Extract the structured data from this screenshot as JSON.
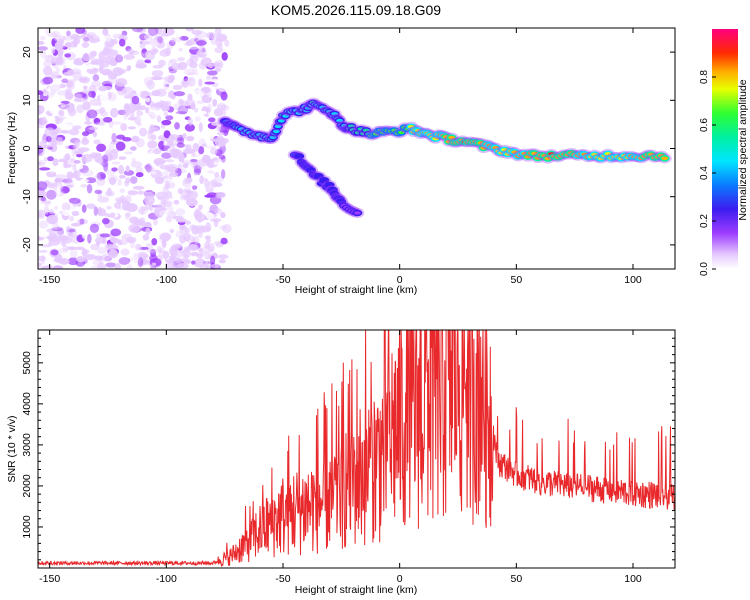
{
  "title": "KOM5.2026.115.09.18.G09",
  "colors": {
    "snr_line": "#e8282b",
    "speckle": "#7a1fe0",
    "frame": "#000000"
  },
  "chart_data": [
    {
      "type": "heatmap",
      "xlabel": "Height of straight line (km)",
      "ylabel": "Frequency (Hz)",
      "xlim": [
        -155,
        118
      ],
      "ylim": [
        -25,
        25
      ],
      "xticks": [
        -150,
        -100,
        -50,
        0,
        50,
        100
      ],
      "yticks": [
        -20,
        -10,
        0,
        10,
        20
      ],
      "colorbar": {
        "label": "Normalized spectral amplitude",
        "range": [
          0,
          1
        ],
        "ticks": [
          "0.0",
          "0.2",
          "0.4",
          "0.6",
          "0.8"
        ],
        "colormap": "rainbow (white-purple-blue-cyan-green-yellow-red-magenta)"
      },
      "noise_region_x": [
        -155,
        -78
      ],
      "signal_trace": [
        {
          "x": -75,
          "y": 6,
          "amp": 0.35
        },
        {
          "x": -70,
          "y": 4,
          "amp": 0.45
        },
        {
          "x": -62,
          "y": 3,
          "amp": 0.5
        },
        {
          "x": -55,
          "y": 2,
          "amp": 0.45
        },
        {
          "x": -50,
          "y": 7,
          "amp": 0.55
        },
        {
          "x": -42,
          "y": 8,
          "amp": 0.5
        },
        {
          "x": -37,
          "y": 9,
          "amp": 0.55
        },
        {
          "x": -30,
          "y": 8,
          "amp": 0.5
        },
        {
          "x": -25,
          "y": 5,
          "amp": 0.5
        },
        {
          "x": -20,
          "y": 4,
          "amp": 0.6
        },
        {
          "x": -12,
          "y": 3,
          "amp": 0.65
        },
        {
          "x": -5,
          "y": 3.5,
          "amp": 0.7
        },
        {
          "x": 5,
          "y": 4,
          "amp": 0.75
        },
        {
          "x": 12,
          "y": 3,
          "amp": 0.75
        },
        {
          "x": 20,
          "y": 2,
          "amp": 0.85
        },
        {
          "x": 28,
          "y": 1.5,
          "amp": 0.9
        },
        {
          "x": 36,
          "y": 0.5,
          "amp": 0.85
        },
        {
          "x": 45,
          "y": -0.5,
          "amp": 0.8
        },
        {
          "x": 55,
          "y": -1.5,
          "amp": 0.85
        },
        {
          "x": 65,
          "y": -1.5,
          "amp": 0.9
        },
        {
          "x": 75,
          "y": -1.5,
          "amp": 0.85
        },
        {
          "x": 85,
          "y": -1.5,
          "amp": 0.8
        },
        {
          "x": 95,
          "y": -1.5,
          "amp": 0.8
        },
        {
          "x": 105,
          "y": -1.5,
          "amp": 0.85
        },
        {
          "x": 115,
          "y": -1.5,
          "amp": 0.85
        }
      ],
      "secondary_trace": [
        {
          "x": -45,
          "y": -1,
          "amp": 0.35
        },
        {
          "x": -38,
          "y": -5,
          "amp": 0.3
        },
        {
          "x": -30,
          "y": -8,
          "amp": 0.25
        },
        {
          "x": -25,
          "y": -11,
          "amp": 0.25
        },
        {
          "x": -17,
          "y": -14,
          "amp": 0.2
        }
      ]
    },
    {
      "type": "line",
      "xlabel": "Height of straight line (km)",
      "ylabel": "SNR (10 * v/v)",
      "xlim": [
        -155,
        118
      ],
      "ylim": [
        0,
        5800
      ],
      "xticks": [
        -150,
        -100,
        -50,
        0,
        50,
        100
      ],
      "yticks": [
        1000,
        2000,
        3000,
        4000,
        5000
      ],
      "envelope": [
        {
          "x": -155,
          "y": 120
        },
        {
          "x": -80,
          "y": 120
        },
        {
          "x": -72,
          "y": 300
        },
        {
          "x": -60,
          "y": 900
        },
        {
          "x": -50,
          "y": 1300
        },
        {
          "x": -40,
          "y": 1500
        },
        {
          "x": -30,
          "y": 1700
        },
        {
          "x": -20,
          "y": 2200
        },
        {
          "x": -10,
          "y": 2600
        },
        {
          "x": -2,
          "y": 3400
        },
        {
          "x": 5,
          "y": 3900
        },
        {
          "x": 15,
          "y": 4400
        },
        {
          "x": 25,
          "y": 5000
        },
        {
          "x": 33,
          "y": 5200
        },
        {
          "x": 37,
          "y": 4500
        },
        {
          "x": 42,
          "y": 2600
        },
        {
          "x": 50,
          "y": 2300
        },
        {
          "x": 60,
          "y": 2100
        },
        {
          "x": 75,
          "y": 2000
        },
        {
          "x": 90,
          "y": 1900
        },
        {
          "x": 105,
          "y": 1800
        },
        {
          "x": 118,
          "y": 1750
        }
      ]
    }
  ]
}
